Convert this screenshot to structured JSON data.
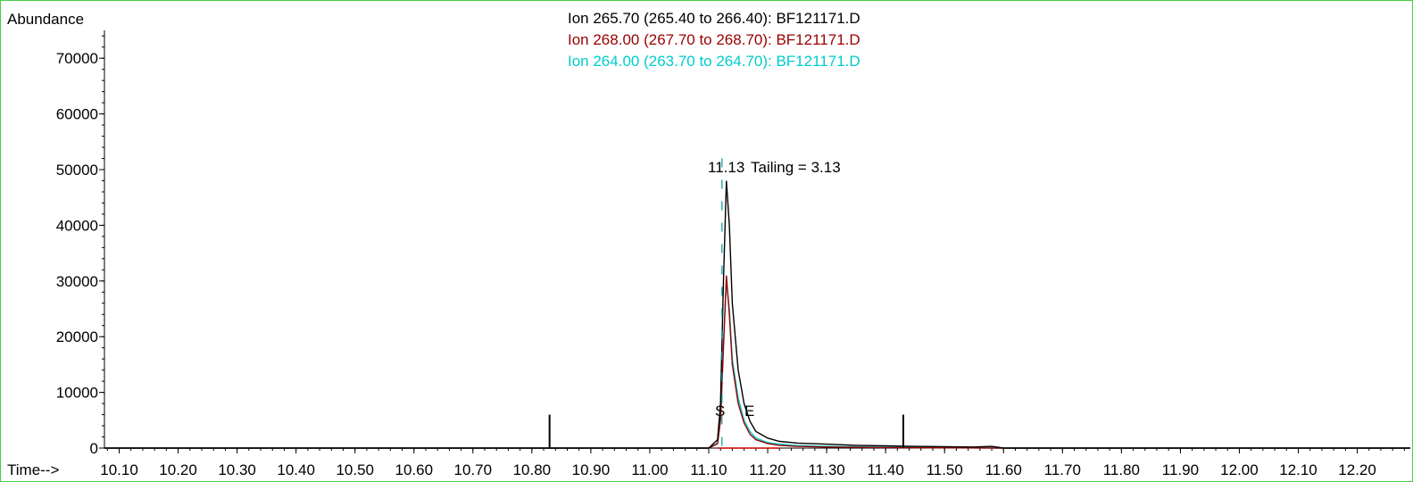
{
  "chart_data": {
    "type": "line",
    "ylabel": "Abundance",
    "xlabel": "Time-->",
    "xlim": [
      10.075,
      12.29
    ],
    "ylim": [
      0,
      75000
    ],
    "x_ticks": [
      "10.10",
      "10.20",
      "10.30",
      "10.40",
      "10.50",
      "10.60",
      "10.70",
      "10.80",
      "10.90",
      "11.00",
      "11.10",
      "11.20",
      "11.30",
      "11.40",
      "11.50",
      "11.60",
      "11.70",
      "11.80",
      "11.90",
      "12.00",
      "12.10",
      "12.20"
    ],
    "y_ticks": [
      "0",
      "10000",
      "20000",
      "30000",
      "40000",
      "50000",
      "60000",
      "70000"
    ],
    "series": [
      {
        "name": "Ion 265.70 (265.40 to 266.40): BF121171.D",
        "color": "#000000",
        "x": [
          10.075,
          11.1,
          11.115,
          11.12,
          11.125,
          11.13,
          11.135,
          11.14,
          11.15,
          11.16,
          11.17,
          11.18,
          11.2,
          11.22,
          11.25,
          11.3,
          11.35,
          11.4,
          11.45,
          11.5,
          11.55,
          11.58,
          11.6,
          12.29
        ],
        "y": [
          0,
          0,
          1500,
          8000,
          30000,
          48000,
          40000,
          26000,
          14000,
          8000,
          4800,
          3000,
          1800,
          1200,
          900,
          700,
          500,
          400,
          300,
          250,
          200,
          300,
          0,
          0
        ]
      },
      {
        "name": "Ion 268.00 (267.70 to 268.70): BF121171.D",
        "color": "#990000",
        "x": [
          10.075,
          11.1,
          11.115,
          11.12,
          11.125,
          11.13,
          11.135,
          11.14,
          11.15,
          11.16,
          11.17,
          11.18,
          11.2,
          11.22,
          11.25,
          11.3,
          11.4,
          11.5,
          11.6,
          12.29
        ],
        "y": [
          0,
          0,
          800,
          5000,
          18000,
          31000,
          24000,
          15000,
          8000,
          4500,
          2500,
          1500,
          800,
          500,
          300,
          200,
          100,
          50,
          0,
          0
        ]
      },
      {
        "name": "Ion 264.00 (263.70 to 264.70): BF121171.D",
        "color": "#00cccc",
        "x": [
          10.075,
          11.1,
          11.115,
          11.12,
          11.125,
          11.13,
          11.135,
          11.14,
          11.15,
          11.16,
          11.17,
          11.18,
          11.2,
          11.22,
          11.25,
          11.3,
          11.4,
          11.5,
          11.6,
          12.29
        ],
        "y": [
          0,
          0,
          900,
          5500,
          19000,
          30000,
          25000,
          16000,
          9000,
          5000,
          3000,
          1800,
          1000,
          700,
          450,
          300,
          150,
          80,
          0,
          0
        ]
      }
    ],
    "annotations": {
      "peak_label": "11.13",
      "tailing_label": "Tailing =  3.13",
      "start_marker": "S",
      "end_marker": "E"
    },
    "markers": [
      {
        "x": 10.83,
        "height": 6000
      },
      {
        "x": 11.43,
        "height": 6000
      }
    ],
    "peak_bounds": {
      "start": 11.115,
      "end": 11.22
    }
  }
}
